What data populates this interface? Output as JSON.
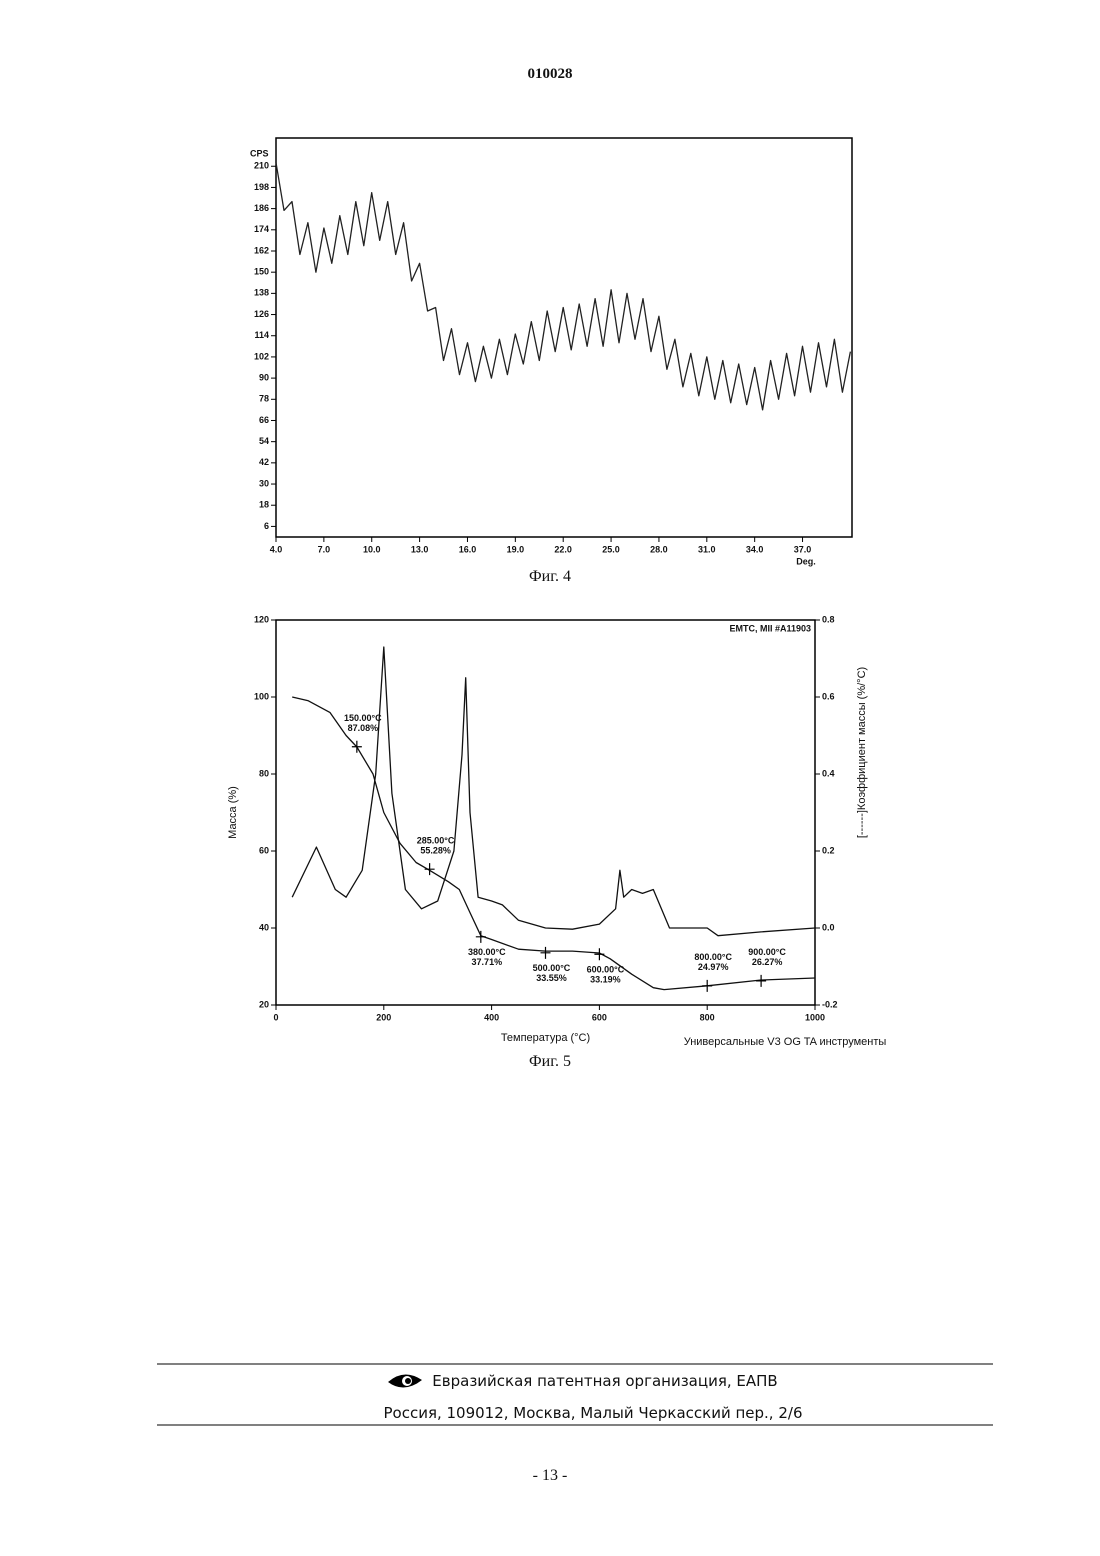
{
  "header": "010028",
  "captions": [
    "Фиг. 4",
    "Фиг. 5"
  ],
  "footer": {
    "org": "Евразийская патентная организация, ЕАПВ",
    "address": "Россия, 109012, Москва, Малый Черкасский пер., 2/6"
  },
  "page_number": "- 13 -",
  "chart_data": [
    {
      "type": "line",
      "ylabel": "CPS",
      "xlabel": "Deg.",
      "x": [
        4,
        4.5,
        5,
        5.5,
        6,
        6.5,
        7,
        7.5,
        8,
        8.5,
        9,
        9.5,
        10,
        10.5,
        11,
        11.5,
        12,
        12.5,
        13,
        13.5,
        14,
        14.5,
        15,
        15.5,
        16,
        16.5,
        17,
        17.5,
        18,
        18.5,
        19,
        19.5,
        20,
        20.5,
        21,
        21.5,
        22,
        22.5,
        23,
        23.5,
        24,
        24.5,
        25,
        25.5,
        26,
        26.5,
        27,
        27.5,
        28,
        28.5,
        29,
        29.5,
        30,
        30.5,
        31,
        31.5,
        32,
        32.5,
        33,
        33.5,
        34,
        34.5,
        35,
        35.5,
        36,
        36.5,
        37,
        37.5,
        38,
        38.5,
        39,
        39.5,
        40
      ],
      "series": [
        {
          "color": "#222",
          "values": [
            212,
            185,
            190,
            160,
            178,
            150,
            175,
            155,
            182,
            160,
            190,
            165,
            195,
            168,
            190,
            160,
            178,
            145,
            155,
            128,
            130,
            100,
            118,
            92,
            110,
            88,
            108,
            90,
            112,
            92,
            115,
            98,
            122,
            100,
            128,
            105,
            130,
            106,
            132,
            108,
            135,
            108,
            140,
            110,
            138,
            112,
            135,
            105,
            125,
            95,
            112,
            85,
            104,
            80,
            102,
            78,
            100,
            76,
            98,
            75,
            96,
            72,
            100,
            78,
            104,
            80,
            108,
            82,
            110,
            85,
            112,
            82,
            105
          ]
        }
      ],
      "xlim": [
        4,
        40.1
      ],
      "ylim": [
        0,
        226
      ],
      "xticks": [
        {
          "value": 4,
          "label": "4.0"
        },
        {
          "value": 7,
          "label": "7.0"
        },
        {
          "value": 10,
          "label": "10.0"
        },
        {
          "value": 13,
          "label": "13.0"
        },
        {
          "value": 16,
          "label": "16.0"
        },
        {
          "value": 19,
          "label": "19.0"
        },
        {
          "value": 22,
          "label": "22.0"
        },
        {
          "value": 25,
          "label": "25.0"
        },
        {
          "value": 28,
          "label": "28.0"
        },
        {
          "value": 31,
          "label": "31.0"
        },
        {
          "value": 34,
          "label": "34.0"
        },
        {
          "value": 37,
          "label": "37.0"
        }
      ],
      "yticks": [
        6,
        18,
        30,
        42,
        54,
        66,
        78,
        90,
        102,
        114,
        126,
        138,
        150,
        162,
        174,
        186,
        198,
        210
      ]
    },
    {
      "type": "line",
      "ylabel": "Масса (%)",
      "y2label": "[------]Коэффициент массы (%/°C)",
      "xlabel": "Температура (°C)",
      "notes": [
        "EMTC, MII #A11903",
        "Универсальные V3 OG TA инструменты"
      ],
      "series": [
        {
          "color": "#111",
          "x": [
            30,
            60,
            100,
            130,
            150,
            180,
            200,
            230,
            260,
            285,
            320,
            340,
            360,
            380,
            400,
            450,
            500,
            550,
            600,
            620,
            660,
            700,
            720,
            800,
            900,
            1000
          ],
          "values": [
            100,
            99,
            96,
            90,
            87,
            80,
            70,
            62,
            57,
            55,
            52,
            50,
            44,
            38,
            37,
            34.5,
            34,
            34,
            33.5,
            32,
            28,
            24.5,
            24,
            25,
            26.5,
            27
          ]
        },
        {
          "color": "#111",
          "axis": "y2",
          "x": [
            30,
            75,
            110,
            130,
            160,
            185,
            200,
            215,
            240,
            270,
            300,
            330,
            345,
            352,
            360,
            375,
            400,
            420,
            450,
            500,
            550,
            600,
            630,
            638,
            645,
            660,
            680,
            700,
            715,
            730,
            800,
            820,
            900,
            1000
          ],
          "values": [
            0.08,
            0.21,
            0.1,
            0.08,
            0.15,
            0.4,
            0.73,
            0.35,
            0.1,
            0.05,
            0.07,
            0.2,
            0.45,
            0.65,
            0.3,
            0.08,
            0.07,
            0.06,
            0.02,
            0,
            -0.003,
            0.01,
            0.05,
            0.15,
            0.08,
            0.1,
            0.09,
            0.1,
            0.05,
            0,
            0,
            -0.02,
            -0.01,
            0
          ]
        }
      ],
      "annotations": [
        {
          "x": 150,
          "y": 87.08,
          "x_label": "150.00°C",
          "y_label": "87.08%"
        },
        {
          "x": 285,
          "y": 55.28,
          "x_label": "285.00°C",
          "y_label": "55.28%"
        },
        {
          "x": 380,
          "y": 37.71,
          "x_label": "380.00°C",
          "y_label": "37.71%"
        },
        {
          "x": 500,
          "y": 33.55,
          "x_label": "500.00°C",
          "y_label": "33.55%"
        },
        {
          "x": 600,
          "y": 33.19,
          "x_label": "600.00°C",
          "y_label": "33.19%"
        },
        {
          "x": 800,
          "y": 24.97,
          "x_label": "800.00°C",
          "y_label": "24.97%"
        },
        {
          "x": 900,
          "y": 26.27,
          "x_label": "900.00°C",
          "y_label": "26.27%"
        }
      ],
      "xlim": [
        0,
        1000
      ],
      "ylim": [
        20,
        120
      ],
      "y2lim": [
        -0.2,
        0.8
      ],
      "xticks": [
        0,
        200,
        400,
        600,
        800,
        1000
      ],
      "yticks": [
        20,
        40,
        60,
        80,
        100,
        120
      ],
      "y2ticks": [
        -0.2,
        {
          "value": 0,
          "label": "0.0"
        },
        0.2,
        0.4,
        0.6,
        0.8
      ]
    }
  ]
}
